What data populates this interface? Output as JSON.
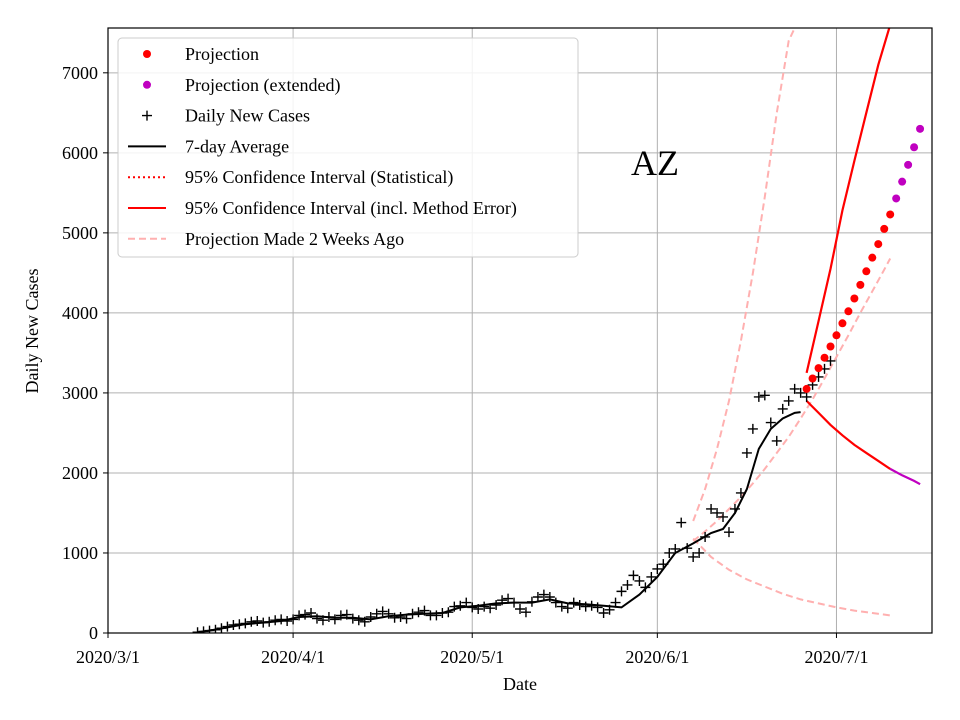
{
  "chart_data": {
    "type": "scatter",
    "title": "AZ",
    "xlabel": "Date",
    "ylabel": "Daily New Cases",
    "x_axis_units": "days since 2020-03-01",
    "xlim": [
      0,
      138
    ],
    "ylim": [
      0,
      7560
    ],
    "grid": true,
    "x_ticks": [
      {
        "day": 0,
        "label": "2020/3/1"
      },
      {
        "day": 31,
        "label": "2020/4/1"
      },
      {
        "day": 61,
        "label": "2020/5/1"
      },
      {
        "day": 92,
        "label": "2020/6/1"
      },
      {
        "day": 122,
        "label": "2020/7/1"
      }
    ],
    "y_ticks": [
      0,
      1000,
      2000,
      3000,
      4000,
      5000,
      6000,
      7000
    ],
    "legend_placement": "top-left",
    "legend": [
      {
        "key": "projection",
        "label": "Projection"
      },
      {
        "key": "projection_ext",
        "label": "Projection (extended)"
      },
      {
        "key": "daily",
        "label": "Daily New Cases"
      },
      {
        "key": "avg",
        "label": "7-day Average"
      },
      {
        "key": "ci_stat",
        "label": "95% Confidence Interval (Statistical)"
      },
      {
        "key": "ci_full",
        "label": "95% Confidence Interval (incl. Method Error)"
      },
      {
        "key": "proj_2wk",
        "label": "Projection Made 2 Weeks Ago"
      }
    ],
    "colors": {
      "projection": "#ff0000",
      "projection_ext": "#c000c0",
      "daily": "#000000",
      "avg": "#000000",
      "ci": "#ff0000",
      "ci_ext": "#c000c0",
      "proj_2wk": "#ffb0b0",
      "grid": "#b0b0b0"
    },
    "series": {
      "daily_new_cases": {
        "x": [
          15,
          16,
          17,
          18,
          19,
          20,
          21,
          22,
          23,
          24,
          25,
          26,
          27,
          28,
          29,
          30,
          31,
          32,
          33,
          34,
          35,
          36,
          37,
          38,
          39,
          40,
          41,
          42,
          43,
          44,
          45,
          46,
          47,
          48,
          49,
          50,
          51,
          52,
          53,
          54,
          55,
          56,
          57,
          58,
          59,
          60,
          61,
          62,
          63,
          64,
          65,
          66,
          67,
          68,
          69,
          70,
          71,
          72,
          73,
          74,
          75,
          76,
          77,
          78,
          79,
          80,
          81,
          82,
          83,
          84,
          85,
          86,
          87,
          88,
          89,
          90,
          91,
          92,
          93,
          94,
          95,
          96,
          97,
          98,
          99,
          100,
          101,
          102,
          103,
          104,
          105,
          106,
          107,
          108,
          109,
          110,
          111,
          112,
          113,
          114,
          115,
          116,
          117,
          118,
          119,
          120,
          121
        ],
        "y": [
          10,
          20,
          30,
          40,
          60,
          80,
          100,
          110,
          120,
          140,
          150,
          130,
          140,
          160,
          170,
          150,
          170,
          220,
          230,
          250,
          180,
          160,
          200,
          170,
          220,
          230,
          180,
          160,
          140,
          200,
          240,
          270,
          240,
          190,
          200,
          180,
          240,
          260,
          280,
          220,
          220,
          250,
          260,
          330,
          340,
          380,
          320,
          300,
          330,
          310,
          350,
          410,
          430,
          380,
          300,
          260,
          390,
          450,
          480,
          450,
          380,
          330,
          310,
          380,
          350,
          330,
          340,
          320,
          250,
          290,
          380,
          520,
          600,
          720,
          650,
          570,
          700,
          800,
          860,
          1000,
          1050,
          1380,
          1060,
          950,
          1000,
          1200,
          1550,
          1500,
          1450,
          1260,
          1550,
          1750,
          2250,
          2550,
          2950,
          2970,
          2630,
          2400,
          2800,
          2900,
          3050,
          3000,
          2950,
          3100,
          3200,
          3300,
          3400
        ]
      },
      "seven_day_average": {
        "x": [
          15,
          17,
          20,
          23,
          26,
          29,
          32,
          35,
          38,
          41,
          44,
          47,
          50,
          53,
          56,
          59,
          62,
          65,
          68,
          71,
          74,
          77,
          80,
          83,
          86,
          89,
          92,
          95,
          98,
          101,
          103,
          105,
          107,
          109,
          111,
          113,
          115,
          116
        ],
        "y": [
          10,
          30,
          70,
          110,
          130,
          150,
          200,
          210,
          190,
          190,
          170,
          210,
          230,
          240,
          250,
          320,
          340,
          370,
          380,
          380,
          420,
          370,
          360,
          340,
          320,
          480,
          700,
          1000,
          1120,
          1250,
          1300,
          1500,
          1800,
          2300,
          2550,
          2680,
          2750,
          2760
        ]
      },
      "projection": {
        "x": [
          117,
          118,
          119,
          120,
          121,
          122,
          123,
          124,
          125,
          126,
          127,
          128,
          129,
          130,
          131
        ],
        "y": [
          3050,
          3180,
          3310,
          3440,
          3580,
          3720,
          3870,
          4020,
          4180,
          4350,
          4520,
          4690,
          4860,
          5050,
          5230
        ]
      },
      "projection_extended": {
        "x": [
          132,
          133,
          134,
          135,
          136
        ],
        "y": [
          5430,
          5640,
          5850,
          6070,
          6300
        ]
      },
      "ci_upper": {
        "x": [
          117,
          119,
          121,
          123,
          125,
          127,
          129,
          131
        ],
        "y": [
          3250,
          3900,
          4550,
          5280,
          5900,
          6500,
          7100,
          7600
        ]
      },
      "ci_lower": {
        "x": [
          117,
          119,
          121,
          123,
          125,
          127,
          129,
          131
        ],
        "y": [
          2900,
          2750,
          2600,
          2470,
          2350,
          2250,
          2150,
          2050
        ]
      },
      "ci_lower_extended": {
        "x": [
          131,
          133,
          135,
          136
        ],
        "y": [
          2050,
          1970,
          1900,
          1860
        ]
      },
      "projection_2wk_center": {
        "x": [
          98,
          100,
          102,
          104,
          106,
          108,
          110,
          112,
          114,
          116,
          118,
          120,
          122,
          124,
          126,
          128,
          130,
          131
        ],
        "y": [
          1150,
          1270,
          1400,
          1550,
          1700,
          1870,
          2050,
          2250,
          2450,
          2680,
          2920,
          3180,
          3450,
          3720,
          4000,
          4270,
          4540,
          4680
        ]
      },
      "projection_2wk_upper": {
        "x": [
          98,
          100,
          102,
          104,
          106,
          108,
          110,
          112,
          114,
          115
        ],
        "y": [
          1400,
          1800,
          2300,
          2900,
          3650,
          4500,
          5450,
          6500,
          7400,
          7560
        ]
      },
      "projection_2wk_lower": {
        "x": [
          98,
          101,
          104,
          107,
          110,
          113,
          116,
          119,
          122,
          125,
          128,
          131
        ],
        "y": [
          1180,
          950,
          790,
          670,
          580,
          490,
          420,
          370,
          320,
          280,
          250,
          220
        ]
      }
    }
  }
}
